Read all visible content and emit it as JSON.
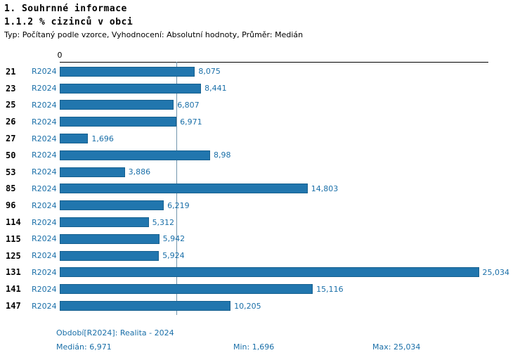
{
  "page": {
    "title_main": "1. Souhrnné informace",
    "title_sub": "1.1.2 % cizinců v obci",
    "subtitle": "Typ: Počítaný podle vzorce, Vyhodnocení: Absolutní hodnoty, Průměr: Medián"
  },
  "chart_data": {
    "type": "bar",
    "orientation": "horizontal",
    "title": "1.1.2 % cizinců v obci",
    "series_label": "R2024",
    "categories": [
      "21",
      "23",
      "25",
      "26",
      "27",
      "50",
      "53",
      "85",
      "96",
      "114",
      "115",
      "125",
      "131",
      "141",
      "147"
    ],
    "values": [
      8.075,
      8.441,
      6.807,
      6.971,
      1.696,
      8.98,
      3.886,
      14.803,
      6.219,
      5.312,
      5.942,
      5.924,
      25.034,
      15.116,
      10.205
    ],
    "value_labels": [
      "8,075",
      "8,441",
      "6,807",
      "6,971",
      "1,696",
      "8,98",
      "3,886",
      "14,803",
      "6,219",
      "5,312",
      "5,942",
      "5,924",
      "25,034",
      "15,116",
      "10,205"
    ],
    "xlim": [
      0,
      25.6
    ],
    "axis_zero_label": "0",
    "median": 6.971,
    "grid": false,
    "legend": false,
    "bar_color": "#2176ae",
    "bar_border_color": "#16608f",
    "text_accent_color": "#1a6fa8",
    "median_line_color": "#7295ad"
  },
  "footer": {
    "period": "Období[R2024]: Realita - 2024",
    "median": "Medián: 6,971",
    "min": "Min: 1,696",
    "max": "Max: 25,034"
  }
}
